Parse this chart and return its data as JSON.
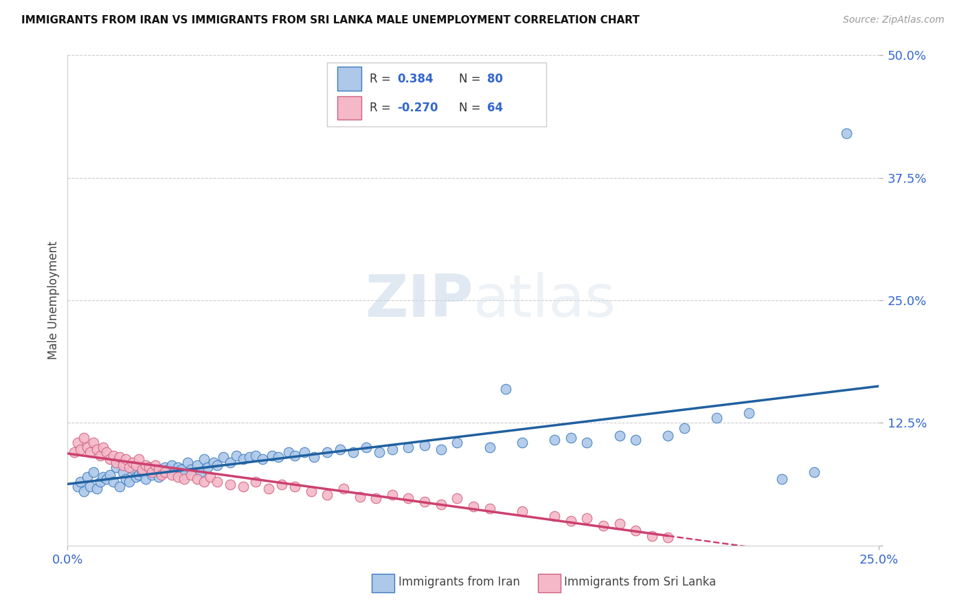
{
  "title": "IMMIGRANTS FROM IRAN VS IMMIGRANTS FROM SRI LANKA MALE UNEMPLOYMENT CORRELATION CHART",
  "source": "Source: ZipAtlas.com",
  "ylabel": "Male Unemployment",
  "xlim": [
    0.0,
    0.25
  ],
  "ylim": [
    0.0,
    0.5
  ],
  "yticks": [
    0.0,
    0.125,
    0.25,
    0.375,
    0.5
  ],
  "ytick_labels": [
    "",
    "12.5%",
    "25.0%",
    "37.5%",
    "50.0%"
  ],
  "xtick_vals": [
    0.0,
    0.25
  ],
  "xtick_labels": [
    "0.0%",
    "25.0%"
  ],
  "iran_R": 0.384,
  "iran_N": 80,
  "srilanka_R": -0.27,
  "srilanka_N": 64,
  "iran_color": "#adc8e8",
  "iran_edge_color": "#3a7bbf",
  "iran_line_color": "#2060a0",
  "srilanka_color": "#f4b8c8",
  "srilanka_edge_color": "#d06080",
  "srilanka_line_color": "#cc4070",
  "watermark_zip": "ZIP",
  "watermark_atlas": "atlas",
  "background_color": "#ffffff",
  "iran_scatter_x": [
    0.003,
    0.004,
    0.005,
    0.006,
    0.007,
    0.008,
    0.009,
    0.01,
    0.011,
    0.012,
    0.013,
    0.014,
    0.015,
    0.016,
    0.017,
    0.018,
    0.019,
    0.02,
    0.021,
    0.022,
    0.023,
    0.024,
    0.025,
    0.026,
    0.027,
    0.028,
    0.029,
    0.03,
    0.031,
    0.032,
    0.033,
    0.034,
    0.035,
    0.036,
    0.037,
    0.038,
    0.04,
    0.041,
    0.042,
    0.043,
    0.045,
    0.046,
    0.048,
    0.05,
    0.052,
    0.054,
    0.056,
    0.058,
    0.06,
    0.063,
    0.065,
    0.068,
    0.07,
    0.073,
    0.076,
    0.08,
    0.084,
    0.088,
    0.092,
    0.096,
    0.1,
    0.105,
    0.11,
    0.115,
    0.12,
    0.13,
    0.135,
    0.14,
    0.15,
    0.155,
    0.16,
    0.17,
    0.175,
    0.185,
    0.19,
    0.2,
    0.21,
    0.22,
    0.23,
    0.24
  ],
  "iran_scatter_y": [
    0.06,
    0.065,
    0.055,
    0.07,
    0.06,
    0.075,
    0.058,
    0.065,
    0.07,
    0.068,
    0.072,
    0.065,
    0.08,
    0.06,
    0.075,
    0.068,
    0.065,
    0.078,
    0.07,
    0.072,
    0.075,
    0.068,
    0.08,
    0.072,
    0.078,
    0.07,
    0.075,
    0.08,
    0.078,
    0.082,
    0.075,
    0.08,
    0.078,
    0.072,
    0.085,
    0.078,
    0.082,
    0.075,
    0.088,
    0.08,
    0.085,
    0.082,
    0.09,
    0.085,
    0.092,
    0.088,
    0.09,
    0.092,
    0.088,
    0.092,
    0.09,
    0.095,
    0.092,
    0.095,
    0.09,
    0.095,
    0.098,
    0.095,
    0.1,
    0.095,
    0.098,
    0.1,
    0.102,
    0.098,
    0.105,
    0.1,
    0.16,
    0.105,
    0.108,
    0.11,
    0.105,
    0.112,
    0.108,
    0.112,
    0.12,
    0.13,
    0.135,
    0.068,
    0.075,
    0.42
  ],
  "srilanka_scatter_x": [
    0.002,
    0.003,
    0.004,
    0.005,
    0.006,
    0.007,
    0.008,
    0.009,
    0.01,
    0.011,
    0.012,
    0.013,
    0.014,
    0.015,
    0.016,
    0.017,
    0.018,
    0.019,
    0.02,
    0.021,
    0.022,
    0.023,
    0.024,
    0.025,
    0.026,
    0.027,
    0.028,
    0.029,
    0.03,
    0.032,
    0.034,
    0.036,
    0.038,
    0.04,
    0.042,
    0.044,
    0.046,
    0.05,
    0.054,
    0.058,
    0.062,
    0.066,
    0.07,
    0.075,
    0.08,
    0.085,
    0.09,
    0.095,
    0.1,
    0.105,
    0.11,
    0.115,
    0.12,
    0.125,
    0.13,
    0.14,
    0.15,
    0.155,
    0.16,
    0.165,
    0.17,
    0.175,
    0.18,
    0.185
  ],
  "srilanka_scatter_y": [
    0.095,
    0.105,
    0.098,
    0.11,
    0.1,
    0.095,
    0.105,
    0.098,
    0.092,
    0.1,
    0.095,
    0.088,
    0.092,
    0.085,
    0.09,
    0.082,
    0.088,
    0.08,
    0.085,
    0.082,
    0.088,
    0.078,
    0.082,
    0.08,
    0.075,
    0.082,
    0.078,
    0.072,
    0.075,
    0.072,
    0.07,
    0.068,
    0.072,
    0.068,
    0.065,
    0.07,
    0.065,
    0.062,
    0.06,
    0.065,
    0.058,
    0.062,
    0.06,
    0.055,
    0.052,
    0.058,
    0.05,
    0.048,
    0.052,
    0.048,
    0.045,
    0.042,
    0.048,
    0.04,
    0.038,
    0.035,
    0.03,
    0.025,
    0.028,
    0.02,
    0.022,
    0.015,
    0.01,
    0.008
  ],
  "legend_iran_label": "Immigrants from Iran",
  "legend_srilanka_label": "Immigrants from Sri Lanka"
}
